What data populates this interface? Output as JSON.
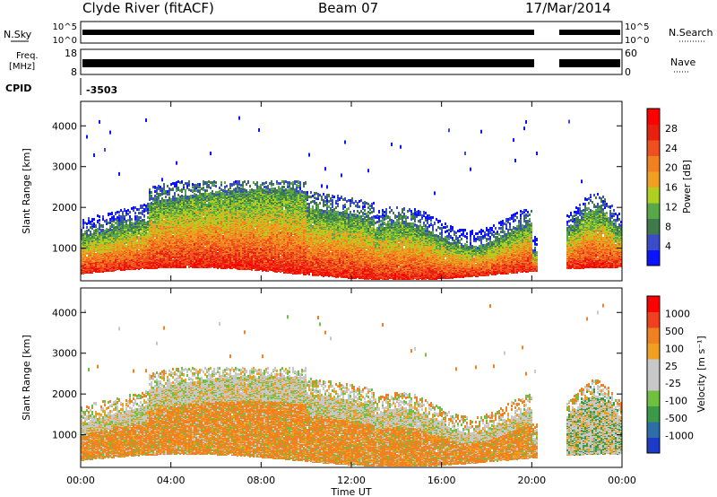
{
  "header": {
    "station": "Clyde River (fitACF)",
    "beam": "Beam 07",
    "date": "17/Mar/2014"
  },
  "top_panels": {
    "nsky_label": "N.Sky",
    "nsky_ticks": [
      "10^5",
      "10^0"
    ],
    "nsearch_label": "N.Search",
    "nsearch_ticks": [
      "10^5",
      "10^0"
    ],
    "freq_label_1": "Freq.",
    "freq_label_2": "[MHz]",
    "freq_ticks": [
      "18",
      "8"
    ],
    "nave_label": "Nave",
    "nave_ticks": [
      "60",
      "0"
    ],
    "cpid_label": "CPID",
    "cpid_value": "-3503"
  },
  "x_axis": {
    "label": "Time UT",
    "ticks": [
      "00:00",
      "04:00",
      "08:00",
      "12:00",
      "16:00",
      "20:00",
      "00:00"
    ]
  },
  "y_axis": {
    "label": "Slant Range [km]",
    "ticks": [
      "1000",
      "2000",
      "3000",
      "4000"
    ]
  },
  "power_colorbar": {
    "label": "Power [dB]",
    "ticks": [
      "4",
      "8",
      "12",
      "16",
      "20",
      "24",
      "28"
    ],
    "colors": [
      "#0a14ff",
      "#3a4cc8",
      "#3e7a4a",
      "#58a84a",
      "#b0d020",
      "#f0a020",
      "#f08020",
      "#f05020",
      "#e82010",
      "#ff0000"
    ]
  },
  "velocity_colorbar": {
    "label": "Velocity [m s⁻¹]",
    "ticks": [
      "1000",
      "500",
      "100",
      "25",
      "-25",
      "-100",
      "-500",
      "-1000"
    ],
    "colors": [
      "#1c3cc8",
      "#2e6ea8",
      "#3a9a48",
      "#70c040",
      "#c8c8c8",
      "#c8c8c8",
      "#f0a020",
      "#f08020",
      "#f04020",
      "#ff0000"
    ]
  },
  "chart_data": [
    {
      "type": "heatmap",
      "title": "Power",
      "xlabel": "Time UT",
      "ylabel": "Slant Range [km]",
      "xlim": [
        "00:00",
        "00:00"
      ],
      "ylim": [
        200,
        4600
      ],
      "colorbar_label": "Power [dB]",
      "colorbar_range": [
        0,
        32
      ],
      "data_gap": [
        "20:30",
        "21:30"
      ]
    },
    {
      "type": "heatmap",
      "title": "Velocity",
      "xlabel": "Time UT",
      "ylabel": "Slant Range [km]",
      "xlim": [
        "00:00",
        "00:00"
      ],
      "ylim": [
        200,
        4600
      ],
      "colorbar_label": "Velocity [m s⁻¹]",
      "colorbar_range": [
        -1000,
        1000
      ],
      "data_gap": [
        "20:30",
        "21:30"
      ]
    }
  ]
}
